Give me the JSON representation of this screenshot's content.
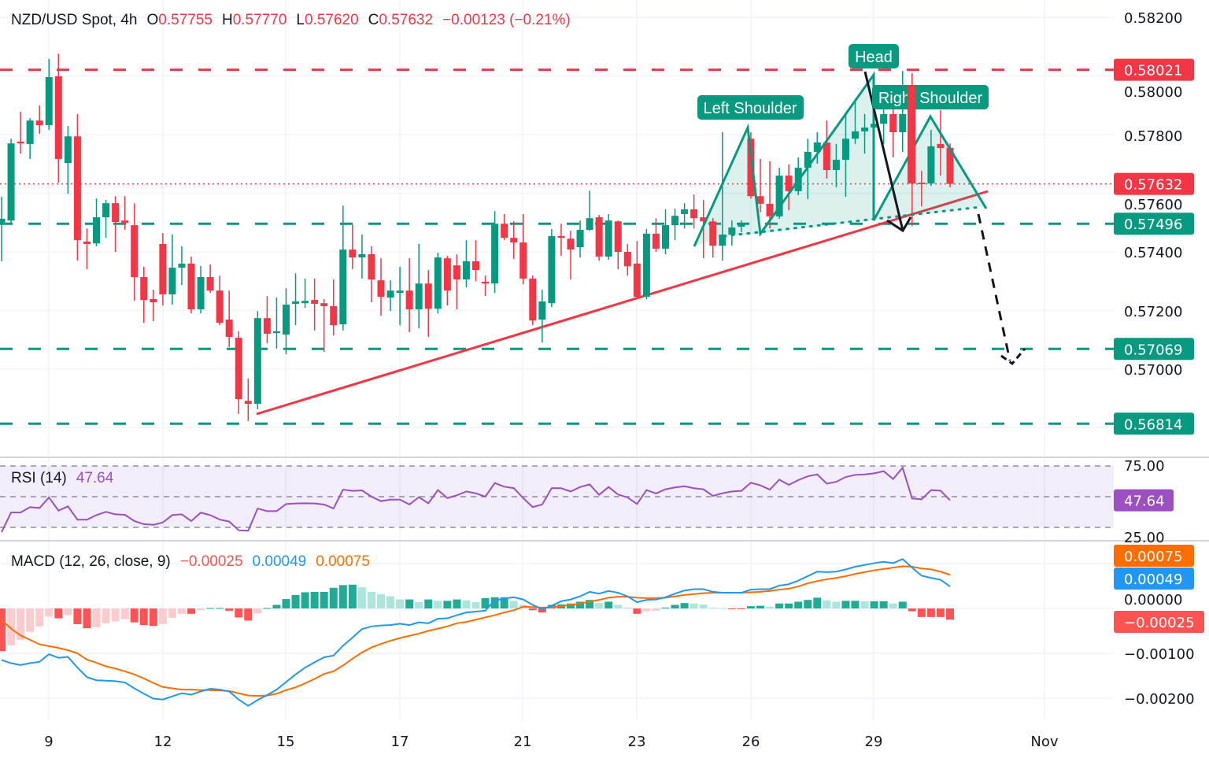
{
  "header": {
    "symbol": "NZD/USD Spot, 4h",
    "o_label": "O",
    "open": "0.57755",
    "h_label": "H",
    "high": "0.57770",
    "l_label": "L",
    "low": "0.57620",
    "c_label": "C",
    "close": "0.57632",
    "change": "−0.00123 (−0.21%)"
  },
  "rsi_legend": {
    "title": "RSI (14)",
    "value": "47.64"
  },
  "macd_legend": {
    "title": "MACD (12, 26, close, 9)",
    "hist": "−0.00025",
    "macd": "0.00049",
    "signal": "0.00075"
  },
  "price_axis": [
    "0.58200",
    "0.58000",
    "0.57800",
    "0.57600",
    "0.57400",
    "0.57200",
    "0.57000"
  ],
  "rsi_axis": [
    "75.00",
    "25.00"
  ],
  "macd_axis": [
    "0.00000",
    "−0.00100",
    "−0.00200"
  ],
  "x_axis": [
    "9",
    "12",
    "15",
    "17",
    "21",
    "23",
    "26",
    "29",
    "Nov"
  ],
  "levels": [
    {
      "price": "0.58021",
      "color": "#f23645",
      "style": "dashed"
    },
    {
      "price": "0.57632",
      "color": "#f23645",
      "style": "dotted"
    },
    {
      "price": "0.57496",
      "color": "#089981",
      "style": "dashed"
    },
    {
      "price": "0.57069",
      "color": "#089981",
      "style": "dashed"
    },
    {
      "price": "0.56814",
      "color": "#089981",
      "style": "dashed"
    }
  ],
  "rsi_tag": "47.64",
  "macd_tags": {
    "signal": "0.00075",
    "macd": "0.00049",
    "hist": "−0.00025"
  },
  "annotations": {
    "left_shoulder": "Left Shoulder",
    "head": "Head",
    "right_shoulder": "Right Shoulder"
  },
  "colors": {
    "up": "#089981",
    "down": "#f23645",
    "rsi": "#9c4fc0",
    "macd": "#2196f3",
    "signal": "#ff6d00",
    "hist_up_strong": "#22ab94",
    "hist_up_weak": "#ace5dc",
    "hist_down_strong": "#ff5252",
    "hist_down_weak": "#fccbcd"
  },
  "chart_data": {
    "type": "candlestick",
    "title": "NZD/USD Spot, 4h",
    "ylim": [
      0.5675,
      0.5825
    ],
    "grid": true,
    "candles_ohlc": [
      [
        0.57494,
        0.57588,
        0.57368,
        0.57513
      ],
      [
        0.57507,
        0.57786,
        0.57494,
        0.5777
      ],
      [
        0.57776,
        0.57878,
        0.57735,
        0.5777
      ],
      [
        0.57768,
        0.57856,
        0.57717,
        0.57848
      ],
      [
        0.57848,
        0.57899,
        0.57803,
        0.57832
      ],
      [
        0.57832,
        0.58058,
        0.57816,
        0.57996
      ],
      [
        0.57999,
        0.58076,
        0.57636,
        0.57717
      ],
      [
        0.57703,
        0.57829,
        0.57598,
        0.57794
      ],
      [
        0.57794,
        0.5787,
        0.5737,
        0.5744
      ],
      [
        0.57435,
        0.5748,
        0.57341,
        0.57427
      ],
      [
        0.57429,
        0.57582,
        0.57419,
        0.57518
      ],
      [
        0.57518,
        0.57577,
        0.57448,
        0.57566
      ],
      [
        0.57566,
        0.5759,
        0.574,
        0.57502
      ],
      [
        0.57507,
        0.5759,
        0.57475,
        0.57499
      ],
      [
        0.57491,
        0.57566,
        0.57233,
        0.57314
      ],
      [
        0.57314,
        0.57349,
        0.57158,
        0.57236
      ],
      [
        0.57239,
        0.57271,
        0.57164,
        0.57228
      ],
      [
        0.57427,
        0.57464,
        0.57217,
        0.57255
      ],
      [
        0.57255,
        0.57459,
        0.5722,
        0.57346
      ],
      [
        0.57346,
        0.57419,
        0.57287,
        0.5736
      ],
      [
        0.5736,
        0.57384,
        0.5719,
        0.57204
      ],
      [
        0.57204,
        0.57352,
        0.5719,
        0.57314
      ],
      [
        0.57314,
        0.57357,
        0.5726,
        0.57268
      ],
      [
        0.57268,
        0.57319,
        0.5715,
        0.57158
      ],
      [
        0.57169,
        0.57268,
        0.57075,
        0.5711
      ],
      [
        0.57107,
        0.57129,
        0.56847,
        0.56898
      ],
      [
        0.56892,
        0.56968,
        0.56823,
        0.56882
      ],
      [
        0.56882,
        0.57198,
        0.56863,
        0.57174
      ],
      [
        0.57174,
        0.57249,
        0.57088,
        0.57121
      ],
      [
        0.57123,
        0.57244,
        0.5707,
        0.57129
      ],
      [
        0.57118,
        0.57276,
        0.57051,
        0.5722
      ],
      [
        0.57223,
        0.57327,
        0.5715,
        0.57231
      ],
      [
        0.57225,
        0.57309,
        0.57209,
        0.57233
      ],
      [
        0.57236,
        0.57309,
        0.57132,
        0.57223
      ],
      [
        0.57225,
        0.57239,
        0.57059,
        0.57215
      ],
      [
        0.57215,
        0.57306,
        0.57115,
        0.5715
      ],
      [
        0.57153,
        0.57558,
        0.57132,
        0.57408
      ],
      [
        0.57408,
        0.57494,
        0.57341,
        0.57381
      ],
      [
        0.57381,
        0.57459,
        0.57309,
        0.57392
      ],
      [
        0.57392,
        0.57419,
        0.57228,
        0.57306
      ],
      [
        0.57303,
        0.57378,
        0.57182,
        0.57247
      ],
      [
        0.57244,
        0.57303,
        0.57198,
        0.57268
      ],
      [
        0.5726,
        0.57349,
        0.5715,
        0.57268
      ],
      [
        0.57268,
        0.57378,
        0.57126,
        0.57204
      ],
      [
        0.57204,
        0.57427,
        0.57139,
        0.57292
      ],
      [
        0.57292,
        0.57338,
        0.5711,
        0.57206
      ],
      [
        0.57206,
        0.57397,
        0.5719,
        0.57381
      ],
      [
        0.57378,
        0.57386,
        0.57217,
        0.57268
      ],
      [
        0.57354,
        0.57392,
        0.57204,
        0.57306
      ],
      [
        0.57306,
        0.5744,
        0.57279,
        0.57368
      ],
      [
        0.57368,
        0.5744,
        0.573,
        0.57338
      ],
      [
        0.57298,
        0.57319,
        0.57249,
        0.57292
      ],
      [
        0.57292,
        0.57539,
        0.5726,
        0.57496
      ],
      [
        0.57496,
        0.57529,
        0.5744,
        0.57448
      ],
      [
        0.57448,
        0.57505,
        0.57376,
        0.57432
      ],
      [
        0.57432,
        0.57529,
        0.5729,
        0.57309
      ],
      [
        0.57309,
        0.57319,
        0.5715,
        0.57166
      ],
      [
        0.57169,
        0.57271,
        0.57091,
        0.57231
      ],
      [
        0.57225,
        0.57478,
        0.57212,
        0.57454
      ],
      [
        0.57454,
        0.57496,
        0.57386,
        0.57448
      ],
      [
        0.57445,
        0.57472,
        0.57306,
        0.57408
      ],
      [
        0.57416,
        0.57507,
        0.57381,
        0.57475
      ],
      [
        0.57475,
        0.57609,
        0.57472,
        0.57515
      ],
      [
        0.57518,
        0.57526,
        0.5737,
        0.57384
      ],
      [
        0.57384,
        0.57529,
        0.57373,
        0.57507
      ],
      [
        0.57504,
        0.57507,
        0.57341,
        0.574
      ],
      [
        0.574,
        0.57427,
        0.57319,
        0.57351
      ],
      [
        0.5736,
        0.57437,
        0.57239,
        0.57247
      ],
      [
        0.57247,
        0.57478,
        0.57239,
        0.57462
      ],
      [
        0.57462,
        0.57515,
        0.574,
        0.57411
      ],
      [
        0.57411,
        0.57545,
        0.57392,
        0.57491
      ],
      [
        0.57491,
        0.57547,
        0.5744,
        0.57523
      ],
      [
        0.57529,
        0.57566,
        0.5748,
        0.57545
      ],
      [
        0.57545,
        0.57596,
        0.5748,
        0.57515
      ],
      [
        0.57518,
        0.57577,
        0.57378,
        0.57504
      ],
      [
        0.57504,
        0.57515,
        0.57381,
        0.57421
      ],
      [
        0.57421,
        0.57808,
        0.5737,
        0.57459
      ],
      [
        0.57459,
        0.57507,
        0.57421,
        0.57483
      ],
      [
        0.57486,
        0.57507,
        0.57467,
        0.57494
      ],
      [
        0.57786,
        0.57808,
        0.57582,
        0.5759
      ],
      [
        0.5759,
        0.57717,
        0.57534,
        0.57564
      ],
      [
        0.57564,
        0.57709,
        0.5748,
        0.57521
      ],
      [
        0.57521,
        0.57687,
        0.57513,
        0.5766
      ],
      [
        0.5766,
        0.57698,
        0.57542,
        0.57607
      ],
      [
        0.57607,
        0.57722,
        0.57593,
        0.57687
      ],
      [
        0.57687,
        0.57786,
        0.5758,
        0.57741
      ],
      [
        0.57741,
        0.57808,
        0.57701,
        0.57773
      ],
      [
        0.57773,
        0.57848,
        0.5765,
        0.57679
      ],
      [
        0.57679,
        0.57768,
        0.5762,
        0.57714
      ],
      [
        0.57714,
        0.57875,
        0.57588,
        0.57786
      ],
      [
        0.57786,
        0.5791,
        0.57768,
        0.57811
      ],
      [
        0.57811,
        0.5787,
        0.57735,
        0.57824
      ],
      [
        0.57824,
        0.57999,
        0.57803,
        0.57837
      ],
      [
        0.57837,
        0.57897,
        0.57768,
        0.5787
      ],
      [
        0.5787,
        0.57888,
        0.57722,
        0.57808
      ],
      [
        0.57808,
        0.58017,
        0.57741,
        0.5787
      ],
      [
        0.57969,
        0.58009,
        0.57488,
        0.57633
      ],
      [
        0.57636,
        0.57676,
        0.57555,
        0.57631
      ],
      [
        0.57633,
        0.57816,
        0.57625,
        0.5776
      ],
      [
        0.57768,
        0.57883,
        0.5766,
        0.57754
      ],
      [
        0.57755,
        0.5777,
        0.5762,
        0.57632
      ]
    ],
    "rsi": [
      26.9,
      39.7,
      39.7,
      43.2,
      42.6,
      49.5,
      40.9,
      43.7,
      35,
      35,
      38,
      40.1,
      38.5,
      38.2,
      34.1,
      32.1,
      31.7,
      33.2,
      38,
      38.5,
      34.1,
      39.6,
      38,
      35.1,
      33.8,
      28.1,
      27.8,
      42.3,
      40.6,
      40.6,
      45.2,
      45.6,
      45.7,
      45.6,
      44.9,
      42.3,
      54.6,
      53.8,
      54.1,
      50,
      47.1,
      48.1,
      48.1,
      44.9,
      49.7,
      45.7,
      54.3,
      49.1,
      50.9,
      53.4,
      52.2,
      50,
      58.9,
      56.5,
      55.6,
      49.1,
      43.2,
      44.9,
      55.6,
      55.5,
      53.4,
      56.3,
      58,
      51.2,
      56.3,
      51.4,
      49.5,
      45.2,
      54.3,
      52.1,
      54.8,
      56,
      56.8,
      55.5,
      54.8,
      50.5,
      52.2,
      53.4,
      53.8,
      59.1,
      57.4,
      54.6,
      61.1,
      57.7,
      60.8,
      63.3,
      64.5,
      58.5,
      59.7,
      62.8,
      64.2,
      64.5,
      65.2,
      66.6,
      61.5,
      68.8,
      48.8,
      48.3,
      54.3,
      53.9,
      47.64
    ],
    "rsi_levels": [
      70,
      50,
      30
    ],
    "macd": [
      -0.00115,
      -0.00122,
      -0.00126,
      -0.00122,
      -0.00119,
      -0.00102,
      -0.0011,
      -0.00108,
      -0.00132,
      -0.00153,
      -0.0016,
      -0.00161,
      -0.00162,
      -0.00165,
      -0.00178,
      -0.0019,
      -0.00201,
      -0.00203,
      -0.00196,
      -0.00189,
      -0.00192,
      -0.00185,
      -0.00179,
      -0.00181,
      -0.00185,
      -0.00203,
      -0.00217,
      -0.00204,
      -0.00193,
      -0.00181,
      -0.00164,
      -0.00147,
      -0.00132,
      -0.0012,
      -0.00109,
      -0.00105,
      -0.00083,
      -0.00065,
      -0.00046,
      -0.0004,
      -0.00038,
      -0.00037,
      -0.00034,
      -0.00037,
      -0.00031,
      -0.00033,
      -0.00023,
      -0.00022,
      -0.00015,
      -9e-05,
      -7e-05,
      -5e-05,
      0.00018,
      0.00022,
      0.00025,
      0.0002,
      8e-05,
      -2e-05,
      6e-05,
      0.00016,
      0.0002,
      0.00027,
      0.00037,
      0.00033,
      0.00039,
      0.00035,
      0.00027,
      0.00014,
      0.00019,
      0.0002,
      0.00025,
      0.00033,
      0.0004,
      0.00043,
      0.00043,
      0.00037,
      0.00035,
      0.00035,
      0.00035,
      0.00042,
      0.00043,
      0.00043,
      0.00051,
      0.00054,
      0.00062,
      0.00072,
      0.00082,
      0.00081,
      0.00082,
      0.00087,
      0.00093,
      0.00097,
      0.00101,
      0.00104,
      0.00101,
      0.0011,
      0.00091,
      0.00073,
      0.00068,
      0.00064,
      0.00049
    ],
    "signal": [
      -0.00026,
      -0.00045,
      -0.0006,
      -0.0007,
      -0.0008,
      -0.00084,
      -0.00088,
      -0.00093,
      -0.001,
      -0.00114,
      -0.00121,
      -0.00129,
      -0.00134,
      -0.0014,
      -0.00147,
      -0.00156,
      -0.00166,
      -0.00175,
      -0.00178,
      -0.00181,
      -0.00181,
      -0.00182,
      -0.00182,
      -0.00183,
      -0.00184,
      -0.00189,
      -0.00194,
      -0.00195,
      -0.00194,
      -0.0019,
      -0.00182,
      -0.00176,
      -0.00167,
      -0.00157,
      -0.00146,
      -0.0014,
      -0.00127,
      -0.00112,
      -0.00098,
      -0.00087,
      -0.00079,
      -0.00072,
      -0.00066,
      -0.00061,
      -0.00056,
      -0.0005,
      -0.00045,
      -0.0004,
      -0.00033,
      -0.0003,
      -0.00025,
      -0.0002,
      -0.00015,
      -9e-05,
      -4e-05,
      4e-05,
      3e-05,
      2e-05,
      2e-05,
      5e-05,
      8e-05,
      0.00011,
      0.00015,
      0.00019,
      0.00024,
      0.00026,
      0.00026,
      0.00024,
      0.00023,
      0.00023,
      0.00024,
      0.00027,
      0.0003,
      0.00032,
      0.00034,
      0.00035,
      0.00035,
      0.00035,
      0.00035,
      0.00036,
      0.00037,
      0.00039,
      0.00042,
      0.00044,
      0.00049,
      0.00056,
      0.00061,
      0.00065,
      0.00068,
      0.00072,
      0.00077,
      0.00081,
      0.00085,
      0.00088,
      0.00091,
      0.00094,
      0.00093,
      0.00089,
      0.00087,
      0.00082,
      0.00075
    ],
    "histogram": [
      -0.00095,
      -0.00082,
      -0.0007,
      -0.00052,
      -0.0004,
      -0.00018,
      -0.00022,
      -0.00015,
      -0.00035,
      -0.00044,
      -0.00042,
      -0.00033,
      -0.00029,
      -0.00024,
      -0.00031,
      -0.00037,
      -0.00039,
      -0.00035,
      -0.00021,
      -0.00012,
      -0.00012,
      -4e-05,
      1e-05,
      1e-05,
      -5e-05,
      -0.0002,
      -0.00027,
      -0.00011,
      1e-05,
      8e-05,
      0.00021,
      0.0003,
      0.00036,
      0.00037,
      0.00037,
      0.00046,
      0.00052,
      0.00053,
      0.00047,
      0.00037,
      0.00032,
      0.00027,
      0.0002,
      0.0002,
      0.00014,
      0.0002,
      0.00017,
      0.00017,
      0.0002,
      0.00018,
      0.00014,
      0.00023,
      0.00025,
      0.00025,
      0.00017,
      8e-05,
      -4e-05,
      -9e-05,
      8e-05,
      9e-05,
      0.00011,
      0.00015,
      0.00019,
      0.00012,
      0.00015,
      8e-05,
      2e-05,
      -0.00012,
      -6e-05,
      -5e-05,
      2e-05,
      8e-05,
      0.00012,
      0.00011,
      9e-05,
      2e-05,
      1e-05,
      -1e-05,
      -1e-05,
      5e-05,
      6e-05,
      4e-05,
      0.00011,
      0.00011,
      0.00015,
      0.00019,
      0.00024,
      0.00018,
      0.00015,
      0.00017,
      0.00017,
      0.00016,
      0.00016,
      0.00016,
      0.00011,
      0.00015,
      -6e-05,
      -0.00019,
      -0.00019,
      -0.00019,
      -0.00025
    ]
  }
}
